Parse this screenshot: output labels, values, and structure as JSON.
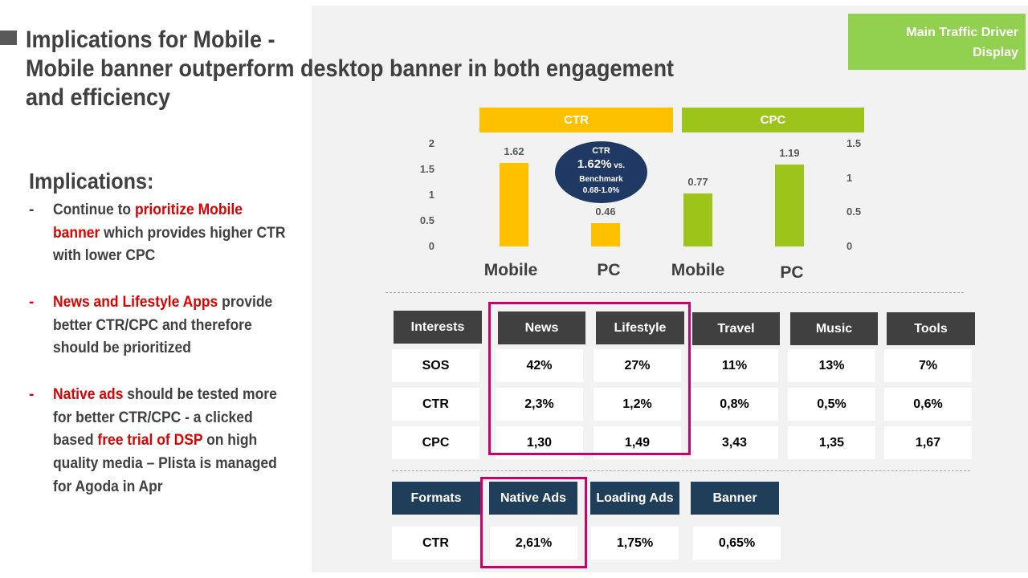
{
  "title": {
    "line1": "Implications for Mobile -",
    "line2": "Mobile banner outperform desktop banner in both engagement",
    "line3": "and efficiency"
  },
  "driver_box": {
    "line1": "Main Traffic  Driver",
    "line2": "Display"
  },
  "implications": {
    "heading": "Implications:",
    "bullets": [
      {
        "dash": "-",
        "l1a": "Continue to ",
        "l1b": "prioritize Mobile",
        "l2a": "banner",
        "l2b": " which provides higher CTR",
        "l3": "with lower CPC"
      },
      {
        "dash": "-",
        "l1a": "News and Lifestyle Apps",
        "l1b": " provide",
        "l2": "better CTR/CPC and therefore",
        "l3": "should be prioritized"
      },
      {
        "dash": "-",
        "l1a": "Native ads",
        "l1b": " should be tested more",
        "l2": "for better CTR/CPC - a clicked",
        "l3a": "based ",
        "l3b": "free trial of DSP",
        "l3c": " on high",
        "l4": "quality media – Plista is managed",
        "l5": "for Agoda in Apr"
      }
    ]
  },
  "chart_data": [
    {
      "type": "bar",
      "title": "CTR",
      "categories": [
        "Mobile",
        "PC"
      ],
      "values": [
        1.62,
        0.46
      ],
      "value_labels": [
        "1.62",
        "0.46"
      ],
      "ylim": [
        0,
        2
      ],
      "yticks": [
        "2",
        "1.5",
        "1",
        "0.5",
        "0"
      ],
      "color": "#ffc000",
      "header_color": "#ffc000"
    },
    {
      "type": "bar",
      "title": "CPC",
      "categories": [
        "Mobile",
        "PC"
      ],
      "values": [
        0.77,
        1.19
      ],
      "value_labels": [
        "0.77",
        "1.19"
      ],
      "ylim": [
        0,
        1.5
      ],
      "yticks": [
        "1.5",
        "1",
        "0.5",
        "0"
      ],
      "color": "#9dc41a",
      "header_color": "#9dc41a"
    }
  ],
  "bubble": {
    "l1": "CTR",
    "l2a": "1.62%",
    "l2b": " vs.",
    "l3": "Benchmark",
    "l4": "0.68-1.0%"
  },
  "interests_table": {
    "headers": [
      "Interests",
      "News",
      "Lifestyle",
      "Travel",
      "Music",
      "Tools"
    ],
    "rows": [
      [
        "SOS",
        "42%",
        "27%",
        "11%",
        "13%",
        "7%"
      ],
      [
        "CTR",
        "2,3%",
        "1,2%",
        "0,8%",
        "0,5%",
        "0,6%"
      ],
      [
        "CPC",
        "1,30",
        "1,49",
        "3,43",
        "1,35",
        "1,67"
      ]
    ]
  },
  "formats_table": {
    "headers": [
      "Formats",
      "Native Ads",
      "Loading Ads",
      "Banner"
    ],
    "rows": [
      [
        "CTR",
        "2,61%",
        "1,75%",
        "0,65%"
      ]
    ]
  },
  "colors": {
    "highlight": "#cc0066",
    "accent_red": "#e00000",
    "navy": "#1f3864"
  }
}
